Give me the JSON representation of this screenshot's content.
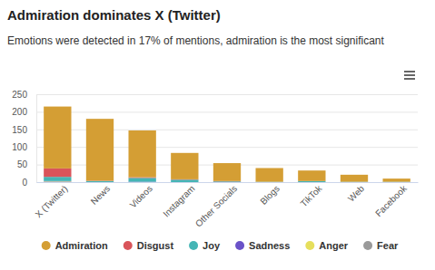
{
  "chart_data": {
    "type": "bar",
    "title": "Admiration dominates X (Twitter)",
    "subtitle": "Emotions were detected in 17% of mentions, admiration is the most significant",
    "categories": [
      "X (Twitter)",
      "News",
      "Videos",
      "Instagram",
      "Other Socials",
      "Blogs",
      "TikTok",
      "Web",
      "Facebook"
    ],
    "series": [
      {
        "name": "Admiration",
        "color": "#d49e34",
        "values": [
          176,
          176,
          133,
          75,
          51,
          39,
          30,
          20,
          9
        ]
      },
      {
        "name": "Disgust",
        "color": "#d9545a",
        "values": [
          24,
          1,
          2,
          1,
          1,
          0,
          0,
          0,
          0
        ]
      },
      {
        "name": "Joy",
        "color": "#45b5b5",
        "values": [
          12,
          3,
          11,
          7,
          2,
          1,
          3,
          1,
          1
        ]
      },
      {
        "name": "Sadness",
        "color": "#6a52c8",
        "values": [
          1,
          0,
          1,
          0,
          0,
          0,
          0,
          0,
          0
        ]
      },
      {
        "name": "Anger",
        "color": "#e6df5c",
        "values": [
          1,
          0,
          0,
          0,
          0,
          0,
          0,
          0,
          0
        ]
      },
      {
        "name": "Fear",
        "color": "#9a9a9a",
        "values": [
          1,
          0,
          0,
          0,
          0,
          0,
          0,
          0,
          0
        ]
      }
    ],
    "ylim": [
      0,
      250
    ],
    "yticks": [
      0,
      50,
      100,
      150,
      200,
      250
    ],
    "grid": true,
    "stacked": true,
    "legend": "bottom"
  }
}
